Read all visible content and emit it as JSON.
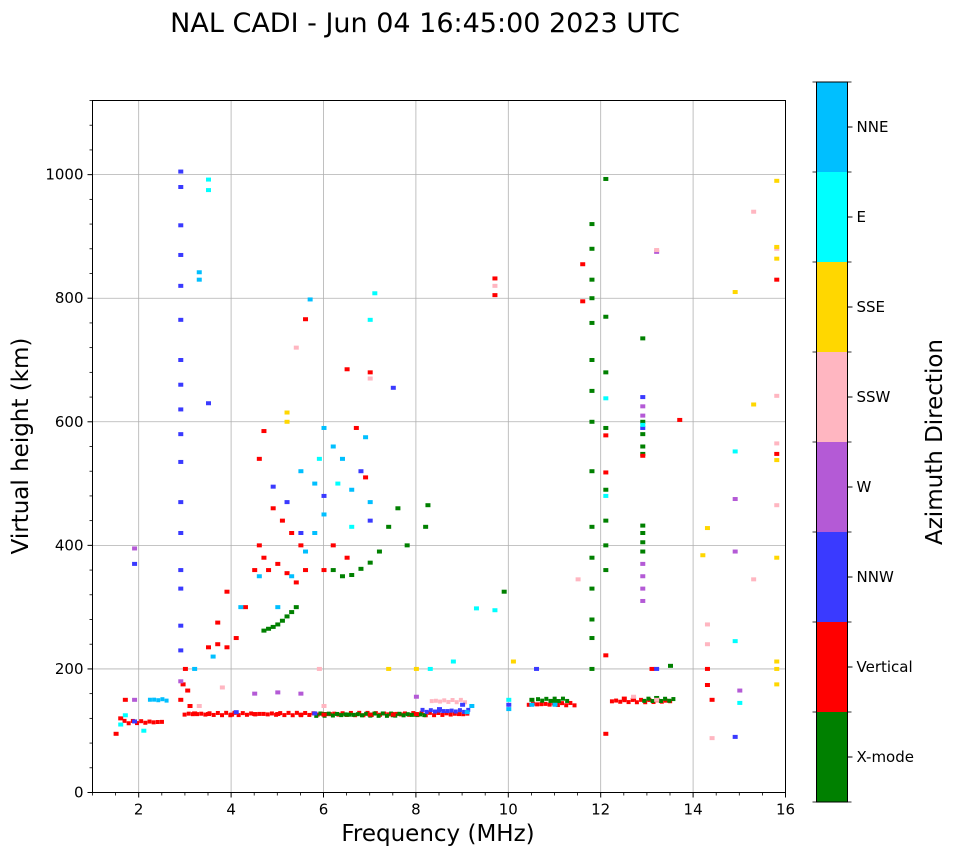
{
  "chart_data": {
    "type": "scatter",
    "title": "NAL CADI - Jun 04 16:45:00 2023 UTC",
    "xlabel": "Frequency (MHz)",
    "ylabel": "Virtual height (km)",
    "xlim": [
      1,
      16
    ],
    "ylim": [
      0,
      1120
    ],
    "xticks": [
      2,
      4,
      6,
      8,
      10,
      12,
      14,
      16
    ],
    "yticks": [
      0,
      200,
      400,
      600,
      800,
      1000
    ],
    "grid": true,
    "colorbar": {
      "label": "Azimuth Direction",
      "categories": [
        "X-mode",
        "Vertical",
        "NNW",
        "W",
        "SSW",
        "SSE",
        "E",
        "NNE"
      ],
      "colors": [
        "#008000",
        "#ff0000",
        "#3a3aff",
        "#b45ad6",
        "#ffb6c1",
        "#ffd700",
        "#00ffff",
        "#00bfff"
      ]
    },
    "series": [
      {
        "name": "X-mode",
        "points": [
          [
            4.7,
            262
          ],
          [
            4.8,
            265
          ],
          [
            4.9,
            268
          ],
          [
            5.0,
            272
          ],
          [
            5.1,
            278
          ],
          [
            5.2,
            285
          ],
          [
            5.3,
            292
          ],
          [
            5.4,
            300
          ],
          [
            6.2,
            360
          ],
          [
            6.4,
            350
          ],
          [
            6.6,
            352
          ],
          [
            6.8,
            362
          ],
          [
            7.0,
            372
          ],
          [
            7.2,
            390
          ],
          [
            7.4,
            430
          ],
          [
            7.6,
            460
          ],
          [
            7.8,
            400
          ],
          [
            8.2,
            430
          ],
          [
            8.25,
            465
          ],
          [
            6.0,
            127
          ],
          [
            6.5,
            126
          ],
          [
            7.0,
            126
          ],
          [
            7.5,
            125
          ],
          [
            8.0,
            126
          ],
          [
            9.9,
            325
          ],
          [
            10.5,
            150
          ],
          [
            11.0,
            148
          ],
          [
            11.8,
            200
          ],
          [
            11.8,
            250
          ],
          [
            11.8,
            280
          ],
          [
            11.8,
            330
          ],
          [
            11.8,
            380
          ],
          [
            11.8,
            430
          ],
          [
            11.8,
            520
          ],
          [
            11.8,
            600
          ],
          [
            11.8,
            650
          ],
          [
            11.8,
            700
          ],
          [
            11.8,
            760
          ],
          [
            11.8,
            800
          ],
          [
            11.8,
            830
          ],
          [
            11.8,
            880
          ],
          [
            11.8,
            920
          ],
          [
            12.1,
            993
          ],
          [
            12.1,
            770
          ],
          [
            12.1,
            680
          ],
          [
            12.1,
            590
          ],
          [
            12.1,
            490
          ],
          [
            12.1,
            440
          ],
          [
            12.1,
            400
          ],
          [
            12.1,
            360
          ],
          [
            12.9,
            548
          ],
          [
            12.9,
            560
          ],
          [
            12.9,
            580
          ],
          [
            12.9,
            600
          ],
          [
            12.9,
            390
          ],
          [
            12.9,
            405
          ],
          [
            12.9,
            420
          ],
          [
            12.9,
            432
          ],
          [
            13.2,
            153
          ],
          [
            13.5,
            205
          ],
          [
            12.9,
            735
          ]
        ]
      },
      {
        "name": "Vertical",
        "points": [
          [
            1.5,
            95
          ],
          [
            1.6,
            120
          ],
          [
            1.7,
            150
          ],
          [
            2.9,
            150
          ],
          [
            2.95,
            175
          ],
          [
            3.0,
            200
          ],
          [
            3.05,
            165
          ],
          [
            3.1,
            140
          ],
          [
            3.2,
            128
          ],
          [
            3.5,
            127
          ],
          [
            4.0,
            126
          ],
          [
            4.5,
            127
          ],
          [
            5.0,
            127
          ],
          [
            5.5,
            126
          ],
          [
            6.0,
            126
          ],
          [
            7.0,
            126
          ],
          [
            7.5,
            126
          ],
          [
            8.0,
            127
          ],
          [
            3.5,
            235
          ],
          [
            3.7,
            240
          ],
          [
            3.9,
            235
          ],
          [
            4.1,
            250
          ],
          [
            4.3,
            300
          ],
          [
            4.5,
            360
          ],
          [
            4.6,
            400
          ],
          [
            4.7,
            380
          ],
          [
            4.8,
            360
          ],
          [
            5.0,
            370
          ],
          [
            5.2,
            355
          ],
          [
            5.4,
            340
          ],
          [
            5.6,
            360
          ],
          [
            4.6,
            540
          ],
          [
            4.7,
            585
          ],
          [
            4.9,
            460
          ],
          [
            5.1,
            440
          ],
          [
            5.3,
            420
          ],
          [
            5.5,
            400
          ],
          [
            6.0,
            360
          ],
          [
            6.2,
            400
          ],
          [
            6.5,
            380
          ],
          [
            6.7,
            590
          ],
          [
            6.9,
            510
          ],
          [
            7.0,
            680
          ],
          [
            5.6,
            766
          ],
          [
            6.5,
            685
          ],
          [
            9.7,
            805
          ],
          [
            9.7,
            832
          ],
          [
            11.6,
            855
          ],
          [
            11.6,
            795
          ],
          [
            12.1,
            578
          ],
          [
            12.1,
            518
          ],
          [
            12.1,
            222
          ],
          [
            12.1,
            95
          ],
          [
            12.5,
            152
          ],
          [
            12.7,
            152
          ],
          [
            12.9,
            545
          ],
          [
            13.1,
            200
          ],
          [
            13.7,
            603
          ],
          [
            14.3,
            200
          ],
          [
            14.3,
            174
          ],
          [
            14.4,
            150
          ],
          [
            15.8,
            830
          ],
          [
            15.8,
            548
          ],
          [
            3.7,
            275
          ],
          [
            3.9,
            325
          ]
        ]
      },
      {
        "name": "NNW",
        "points": [
          [
            1.9,
            115
          ],
          [
            2.9,
            1005
          ],
          [
            2.9,
            980
          ],
          [
            2.9,
            918
          ],
          [
            2.9,
            870
          ],
          [
            2.9,
            820
          ],
          [
            2.9,
            765
          ],
          [
            2.9,
            700
          ],
          [
            2.9,
            660
          ],
          [
            2.9,
            620
          ],
          [
            2.9,
            580
          ],
          [
            2.9,
            535
          ],
          [
            2.9,
            470
          ],
          [
            2.9,
            420
          ],
          [
            2.9,
            360
          ],
          [
            2.9,
            330
          ],
          [
            2.9,
            270
          ],
          [
            2.9,
            230
          ],
          [
            3.5,
            630
          ],
          [
            4.9,
            495
          ],
          [
            5.2,
            470
          ],
          [
            5.5,
            420
          ],
          [
            6.0,
            480
          ],
          [
            7.5,
            655
          ],
          [
            8.5,
            135
          ],
          [
            9.0,
            142
          ],
          [
            10.0,
            142
          ],
          [
            10.6,
            200
          ],
          [
            12.9,
            640
          ],
          [
            12.9,
            590
          ],
          [
            13.2,
            200
          ],
          [
            14.9,
            90
          ],
          [
            1.9,
            370
          ],
          [
            6.8,
            520
          ],
          [
            7.0,
            440
          ],
          [
            4.1,
            130
          ],
          [
            5.8,
            128
          ]
        ]
      },
      {
        "name": "W",
        "points": [
          [
            1.9,
            150
          ],
          [
            1.9,
            395
          ],
          [
            4.5,
            160
          ],
          [
            5.0,
            162
          ],
          [
            5.5,
            160
          ],
          [
            8.0,
            155
          ],
          [
            12.9,
            310
          ],
          [
            12.9,
            330
          ],
          [
            12.9,
            350
          ],
          [
            12.9,
            370
          ],
          [
            12.9,
            625
          ],
          [
            12.9,
            610
          ],
          [
            13.2,
            875
          ],
          [
            14.9,
            475
          ],
          [
            14.9,
            390
          ],
          [
            15.0,
            165
          ],
          [
            2.9,
            180
          ]
        ]
      },
      {
        "name": "SSW",
        "points": [
          [
            3.3,
            140
          ],
          [
            3.8,
            170
          ],
          [
            5.4,
            720
          ],
          [
            5.9,
            200
          ],
          [
            7.0,
            670
          ],
          [
            9.7,
            820
          ],
          [
            11.5,
            345
          ],
          [
            12.7,
            155
          ],
          [
            13.2,
            878
          ],
          [
            13.2,
            150
          ],
          [
            14.3,
            272
          ],
          [
            14.3,
            240
          ],
          [
            14.4,
            88
          ],
          [
            15.3,
            345
          ],
          [
            15.3,
            940
          ],
          [
            15.8,
            880
          ],
          [
            15.8,
            642
          ],
          [
            15.8,
            565
          ],
          [
            15.8,
            465
          ],
          [
            6.0,
            140
          ]
        ]
      },
      {
        "name": "SSE",
        "points": [
          [
            5.2,
            600
          ],
          [
            5.2,
            615
          ],
          [
            7.4,
            200
          ],
          [
            8.0,
            200
          ],
          [
            10.1,
            212
          ],
          [
            14.2,
            384
          ],
          [
            14.3,
            428
          ],
          [
            14.9,
            810
          ],
          [
            15.3,
            628
          ],
          [
            15.8,
            990
          ],
          [
            15.8,
            883
          ],
          [
            15.8,
            864
          ],
          [
            15.8,
            538
          ],
          [
            15.8,
            380
          ],
          [
            15.8,
            212
          ],
          [
            15.8,
            200
          ],
          [
            15.8,
            175
          ]
        ]
      },
      {
        "name": "E",
        "points": [
          [
            1.6,
            110
          ],
          [
            1.7,
            125
          ],
          [
            2.1,
            100
          ],
          [
            3.5,
            992
          ],
          [
            3.5,
            975
          ],
          [
            5.9,
            540
          ],
          [
            6.3,
            500
          ],
          [
            6.6,
            430
          ],
          [
            7.0,
            765
          ],
          [
            7.1,
            808
          ],
          [
            8.3,
            200
          ],
          [
            8.8,
            212
          ],
          [
            9.3,
            298
          ],
          [
            9.7,
            295
          ],
          [
            10.0,
            150
          ],
          [
            12.1,
            638
          ],
          [
            12.1,
            480
          ],
          [
            12.9,
            595
          ],
          [
            14.9,
            552
          ],
          [
            14.9,
            245
          ],
          [
            15.0,
            145
          ]
        ]
      },
      {
        "name": "NNE",
        "points": [
          [
            3.3,
            830
          ],
          [
            3.3,
            842
          ],
          [
            3.2,
            200
          ],
          [
            3.6,
            220
          ],
          [
            4.2,
            300
          ],
          [
            4.6,
            350
          ],
          [
            5.0,
            300
          ],
          [
            5.3,
            350
          ],
          [
            5.6,
            390
          ],
          [
            5.8,
            420
          ],
          [
            6.0,
            450
          ],
          [
            6.0,
            590
          ],
          [
            6.2,
            560
          ],
          [
            6.4,
            540
          ],
          [
            6.6,
            490
          ],
          [
            6.9,
            575
          ],
          [
            7.0,
            470
          ],
          [
            5.8,
            500
          ],
          [
            5.5,
            520
          ],
          [
            9.1,
            130
          ],
          [
            9.2,
            140
          ],
          [
            10.0,
            135
          ],
          [
            10.5,
            142
          ],
          [
            11.0,
            142
          ],
          [
            5.7,
            798
          ]
        ]
      }
    ],
    "bands": [
      {
        "series": "Vertical",
        "x_start": 2.95,
        "x_end": 9.1,
        "y": 127
      },
      {
        "series": "X-mode",
        "x_start": 5.8,
        "x_end": 8.2,
        "y": 126
      },
      {
        "series": "NNW",
        "x_start": 8.1,
        "x_end": 9.1,
        "y": 132
      },
      {
        "series": "SSW",
        "x_start": 8.3,
        "x_end": 9.1,
        "y": 148
      },
      {
        "series": "Vertical",
        "x_start": 10.4,
        "x_end": 11.4,
        "y": 143
      },
      {
        "series": "X-mode",
        "x_start": 10.6,
        "x_end": 11.3,
        "y": 150
      },
      {
        "series": "Vertical",
        "x_start": 12.2,
        "x_end": 13.5,
        "y": 148
      },
      {
        "series": "X-mode",
        "x_start": 12.9,
        "x_end": 13.6,
        "y": 150
      },
      {
        "series": "Vertical",
        "x_start": 1.65,
        "x_end": 2.5,
        "y": 114
      },
      {
        "series": "NNE",
        "x_start": 2.2,
        "x_end": 2.6,
        "y": 150
      }
    ]
  }
}
